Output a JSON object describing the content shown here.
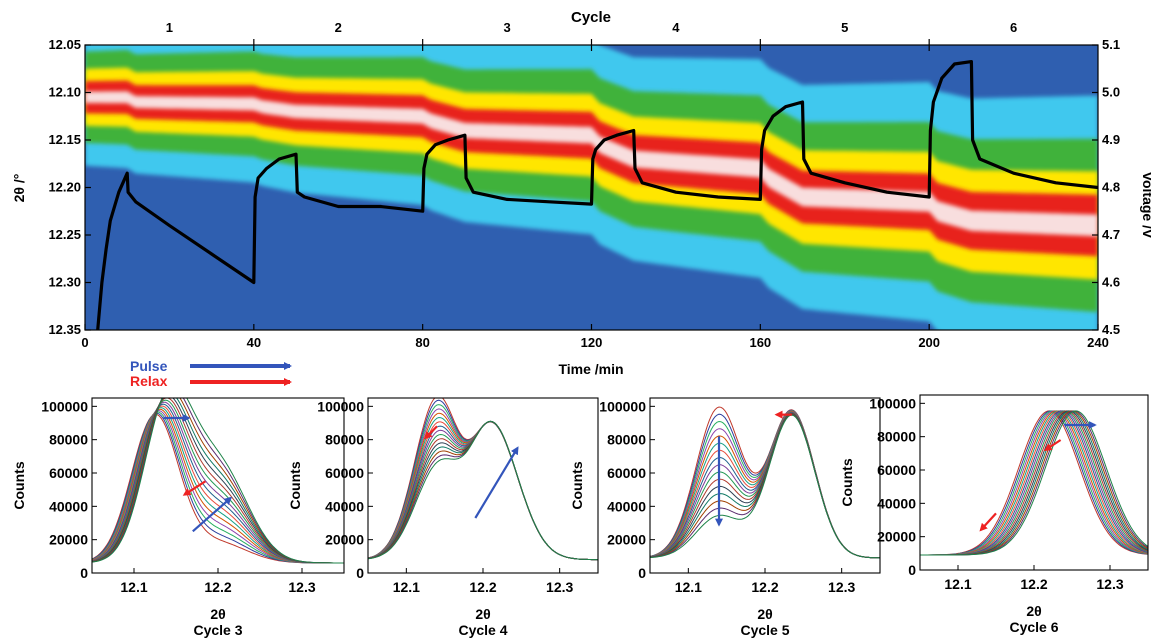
{
  "top": {
    "title": "Cycle",
    "cycle_labels": [
      "1",
      "2",
      "3",
      "4",
      "5",
      "6"
    ],
    "xlabel": "Time /min",
    "ylabel": "2θ /°",
    "y2label": "Voltage /V",
    "xticks": [
      "0",
      "40",
      "80",
      "120",
      "160",
      "200",
      "240"
    ],
    "yticks": [
      "12.05",
      "12.10",
      "12.15",
      "12.20",
      "12.25",
      "12.30",
      "12.35"
    ],
    "y2ticks": [
      "5.1",
      "5.0",
      "4.9",
      "4.8",
      "4.7",
      "4.6",
      "4.5"
    ],
    "colors": {
      "low": "#2f5fb0",
      "mid_low": "#40c8ee",
      "mid": "#3fb23a",
      "mid_high": "#ffe600",
      "high": "#e8201c",
      "peak": "#f8dede",
      "voltage": "#000000"
    }
  },
  "legend": {
    "pulse_label": "Pulse",
    "relax_label": "Relax",
    "pulse_color": "#3355bb",
    "relax_color": "#ee2222"
  },
  "chart_data": [
    {
      "type": "heatmap",
      "title": "Cycle",
      "xlabel": "Time /min",
      "ylabel": "2θ /°",
      "y2label": "Voltage /V",
      "xlim": [
        0,
        240
      ],
      "ylim": [
        12.35,
        12.05
      ],
      "y2lim": [
        4.5,
        5.1
      ],
      "cycles": [
        "1",
        "2",
        "3",
        "4",
        "5",
        "6"
      ],
      "cycle_boundaries": [
        40,
        80,
        120,
        160,
        200
      ],
      "peak_position": {
        "time": [
          0,
          10,
          12,
          40,
          42,
          50,
          80,
          82,
          90,
          120,
          122,
          130,
          160,
          162,
          170,
          200,
          202,
          210,
          240
        ],
        "two_theta": [
          12.105,
          12.105,
          12.11,
          12.112,
          12.115,
          12.12,
          12.125,
          12.13,
          12.14,
          12.145,
          12.155,
          12.17,
          12.18,
          12.19,
          12.21,
          12.215,
          12.225,
          12.235,
          12.24
        ]
      },
      "voltage_series": {
        "name": "Voltage",
        "time": [
          3,
          4,
          5,
          6,
          8,
          10,
          10.2,
          12,
          20,
          30,
          40,
          40.3,
          41,
          43,
          46,
          50,
          50.3,
          52,
          60,
          70,
          80,
          80.3,
          81,
          83,
          86,
          90,
          90.3,
          92,
          100,
          110,
          120,
          120.3,
          121,
          123,
          126,
          130,
          130.3,
          132,
          140,
          150,
          160,
          160.3,
          161,
          163,
          166,
          170,
          170.3,
          172,
          180,
          190,
          200,
          200.3,
          201,
          203,
          206,
          210,
          210.3,
          212,
          220,
          230,
          240
        ],
        "voltage": [
          4.5,
          4.6,
          4.67,
          4.73,
          4.79,
          4.83,
          4.79,
          4.77,
          4.72,
          4.66,
          4.6,
          4.78,
          4.82,
          4.84,
          4.86,
          4.87,
          4.79,
          4.78,
          4.76,
          4.76,
          4.75,
          4.84,
          4.87,
          4.89,
          4.9,
          4.91,
          4.82,
          4.79,
          4.775,
          4.77,
          4.765,
          4.86,
          4.88,
          4.9,
          4.91,
          4.92,
          4.84,
          4.81,
          4.79,
          4.78,
          4.775,
          4.88,
          4.92,
          4.95,
          4.97,
          4.98,
          4.86,
          4.83,
          4.81,
          4.79,
          4.78,
          4.92,
          4.98,
          5.03,
          5.06,
          5.065,
          4.9,
          4.86,
          4.83,
          4.81,
          4.8
        ]
      }
    },
    {
      "type": "line",
      "caption_xlabel": "2θ",
      "caption": "Cycle 3",
      "ylabel": "Counts",
      "xlim": [
        12.05,
        12.35
      ],
      "ylim": [
        0,
        100000
      ],
      "xticks": [
        "12.1",
        "12.2",
        "12.3"
      ],
      "yticks": [
        "0",
        "20000",
        "40000",
        "60000",
        "80000",
        "100000"
      ],
      "series_count": 16,
      "peak_center_range": [
        12.125,
        12.14
      ],
      "shoulder_center": 12.2,
      "shoulder_height_range": [
        12000,
        58000
      ]
    },
    {
      "type": "line",
      "caption_xlabel": "2θ",
      "caption": "Cycle 4",
      "ylabel": "Counts",
      "xlim": [
        12.05,
        12.35
      ],
      "ylim": [
        0,
        100000
      ],
      "xticks": [
        "12.1",
        "12.2",
        "12.3"
      ],
      "yticks": [
        "0",
        "20000",
        "40000",
        "60000",
        "80000",
        "100000"
      ],
      "series_count": 16,
      "peak1_center": 12.14,
      "peak2_center": 12.21,
      "peak1_height_range": [
        92000,
        50000
      ],
      "peak2_height_range": [
        96000,
        97000
      ]
    },
    {
      "type": "line",
      "caption_xlabel": "2θ",
      "caption": "Cycle 5",
      "ylabel": "Counts",
      "xlim": [
        12.05,
        12.35
      ],
      "ylim": [
        0,
        100000
      ],
      "xticks": [
        "12.1",
        "12.2",
        "12.3"
      ],
      "yticks": [
        "0",
        "20000",
        "40000",
        "60000",
        "80000",
        "100000"
      ],
      "series_count": 16,
      "peak1_center": 12.14,
      "peak2_center": 12.235,
      "peak1_height_range": [
        90000,
        25000
      ],
      "peak2_height_range": [
        96000,
        93000
      ]
    },
    {
      "type": "line",
      "caption_xlabel": "2θ",
      "caption": "Cycle 6",
      "ylabel": "Counts",
      "xlim": [
        12.05,
        12.35
      ],
      "ylim": [
        0,
        100000
      ],
      "xticks": [
        "12.1",
        "12.2",
        "12.3"
      ],
      "yticks": [
        "0",
        "20000",
        "40000",
        "60000",
        "80000",
        "100000"
      ],
      "series_count": 16,
      "peak_center_range": [
        12.22,
        12.255
      ],
      "peak_height": 94000
    }
  ]
}
